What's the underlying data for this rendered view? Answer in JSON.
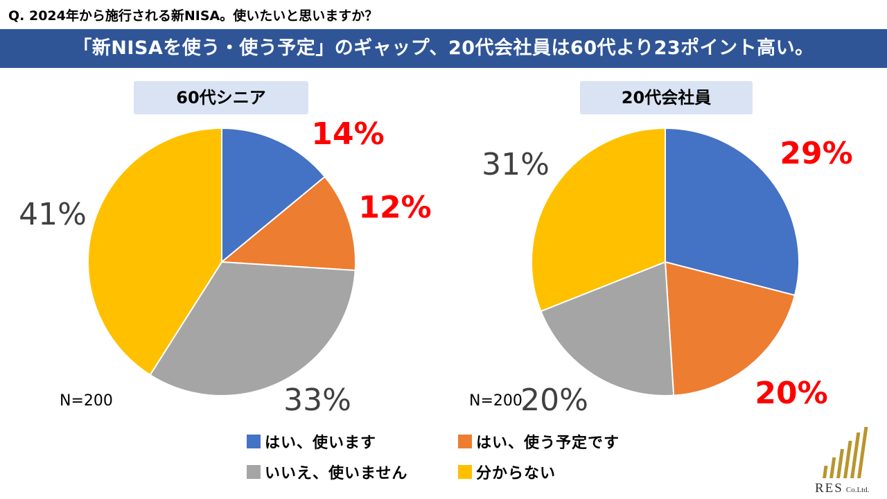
{
  "question": "Q. 2024年から施行される新NISA。使いたいと思いますか？",
  "headline": "「新NISAを使う・使う予定」のギャップ、20代会社員は60代より23ポイント高い。",
  "chart_data": [
    {
      "type": "pie",
      "title": "60代シニア",
      "sample_size": "N=200",
      "categories": [
        "はい、使います",
        "はい、使う予定です",
        "いいえ、使いません",
        "分からない"
      ],
      "values": [
        14,
        12,
        33,
        41
      ],
      "labels": [
        "14%",
        "12%",
        "33%",
        "41%"
      ],
      "colors": [
        "#4472c4",
        "#ed7d31",
        "#a5a5a5",
        "#ffc000"
      ],
      "highlighted": [
        true,
        true,
        false,
        false
      ]
    },
    {
      "type": "pie",
      "title": "20代会社員",
      "sample_size": "N=200",
      "categories": [
        "はい、使います",
        "はい、使う予定です",
        "いいえ、使いません",
        "分からない"
      ],
      "values": [
        29,
        20,
        20,
        31
      ],
      "labels": [
        "29%",
        "20%",
        "20%",
        "31%"
      ],
      "colors": [
        "#4472c4",
        "#ed7d31",
        "#a5a5a5",
        "#ffc000"
      ],
      "highlighted": [
        true,
        true,
        false,
        false
      ]
    }
  ],
  "legend": [
    {
      "label": "はい、使います",
      "color": "#4472c4"
    },
    {
      "label": "はい、使う予定です",
      "color": "#ed7d31"
    },
    {
      "label": "いいえ、使いません",
      "color": "#a5a5a5"
    },
    {
      "label": "分からない",
      "color": "#ffc000"
    }
  ],
  "logo": {
    "name": "RES",
    "suffix": "Co.Ltd.",
    "color": "#b8952e"
  }
}
